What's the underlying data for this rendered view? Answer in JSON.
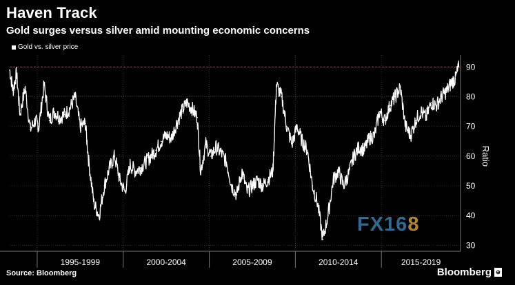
{
  "header": {
    "title": "Haven Track",
    "subtitle": "Gold surges versus silver amid mounting economic concerns"
  },
  "legend": {
    "label": "Gold vs. silver price"
  },
  "footer": {
    "source": "Source: Bloomberg",
    "brand": "Bloomberg"
  },
  "watermark": {
    "part1": "FX16",
    "part2": "8"
  },
  "colors": {
    "background": "#000000",
    "line": "#ffffff",
    "reference_line": "#c0392b",
    "grid": "#555555"
  },
  "chart_data": {
    "type": "line",
    "title": "Haven Track",
    "subtitle": "Gold surges versus silver amid mounting economic concerns",
    "xlabel": "",
    "ylabel": "Ratio",
    "ylim": [
      28,
      94
    ],
    "xlim": [
      1993.4,
      2019.6
    ],
    "yticks": [
      30,
      40,
      50,
      60,
      70,
      80,
      90
    ],
    "x_period_labels": [
      "1995-1999",
      "2000-2004",
      "2005-2009",
      "2010-2014",
      "2015-2019"
    ],
    "x_period_bounds": [
      1995,
      2000,
      2005,
      2010,
      2015,
      2020
    ],
    "reference_line": {
      "y": 90,
      "style": "dashed",
      "color": "#c0392b"
    },
    "grid": true,
    "legend_position": "top-left",
    "series": [
      {
        "name": "Gold vs. silver price",
        "x": [
          1993.4,
          1993.6,
          1993.8,
          1994.0,
          1994.3,
          1994.6,
          1994.9,
          1995.1,
          1995.4,
          1995.7,
          1996.0,
          1996.3,
          1996.6,
          1996.9,
          1997.2,
          1997.5,
          1997.8,
          1998.0,
          1998.3,
          1998.6,
          1998.9,
          1999.2,
          1999.5,
          1999.8,
          2000.1,
          2000.4,
          2000.7,
          2001.0,
          2001.3,
          2001.6,
          2001.9,
          2002.2,
          2002.5,
          2002.8,
          2003.1,
          2003.4,
          2003.7,
          2004.0,
          2004.3,
          2004.5,
          2004.8,
          2005.1,
          2005.4,
          2005.7,
          2006.0,
          2006.3,
          2006.6,
          2006.9,
          2007.2,
          2007.5,
          2007.8,
          2008.1,
          2008.4,
          2008.7,
          2008.9,
          2009.2,
          2009.5,
          2009.8,
          2010.1,
          2010.4,
          2010.7,
          2011.0,
          2011.3,
          2011.6,
          2011.9,
          2012.2,
          2012.5,
          2012.8,
          2013.1,
          2013.4,
          2013.7,
          2014.0,
          2014.3,
          2014.6,
          2014.9,
          2015.2,
          2015.5,
          2015.8,
          2016.1,
          2016.4,
          2016.7,
          2017.0,
          2017.3,
          2017.6,
          2017.9,
          2018.2,
          2018.5,
          2018.8,
          2019.1,
          2019.3,
          2019.5
        ],
        "values": [
          89,
          82,
          88,
          74,
          83,
          69,
          72,
          70,
          84,
          72,
          75,
          73,
          74,
          76,
          80,
          70,
          71,
          58,
          44,
          40,
          50,
          56,
          60,
          52,
          48,
          57,
          55,
          56,
          58,
          60,
          62,
          65,
          67,
          66,
          71,
          75,
          78,
          76,
          73,
          55,
          64,
          60,
          63,
          61,
          58,
          50,
          47,
          55,
          48,
          50,
          52,
          50,
          52,
          55,
          84,
          80,
          70,
          64,
          70,
          65,
          62,
          50,
          44,
          32,
          40,
          52,
          55,
          50,
          54,
          60,
          63,
          62,
          66,
          67,
          75,
          72,
          77,
          80,
          83,
          70,
          67,
          72,
          75,
          73,
          78,
          77,
          80,
          82,
          85,
          86,
          90
        ]
      }
    ]
  }
}
